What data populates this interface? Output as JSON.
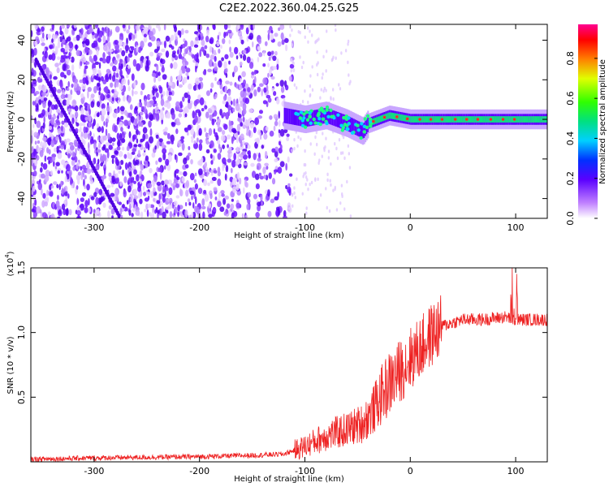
{
  "title": "C2E2.2022.360.04.25.G25",
  "chart_data": [
    {
      "type": "heatmap",
      "xlabel": "Height of straight line (km)",
      "ylabel": "Frequency (Hz)",
      "xlim": [
        -360,
        130
      ],
      "ylim": [
        -50,
        48
      ],
      "x_ticks": [
        -300,
        -200,
        -100,
        0,
        100
      ],
      "y_ticks": [
        -40,
        -20,
        0,
        20,
        40
      ],
      "colorbar": {
        "label": "Normalized spectral amplitude",
        "range": [
          0.0,
          0.97
        ],
        "ticks": [
          "0.0",
          "0.2",
          "0.4",
          "0.6",
          "0.8"
        ],
        "tick_values": [
          0.0,
          0.2,
          0.4,
          0.6,
          0.8
        ]
      },
      "ridge": [
        {
          "x": -120,
          "y": 2
        },
        {
          "x": -100,
          "y": 0
        },
        {
          "x": -80,
          "y": 2
        },
        {
          "x": -60,
          "y": -2
        },
        {
          "x": -45,
          "y": -6
        },
        {
          "x": -40,
          "y": -2
        },
        {
          "x": -20,
          "y": 2
        },
        {
          "x": 0,
          "y": 0
        },
        {
          "x": 50,
          "y": 0
        },
        {
          "x": 100,
          "y": 0
        },
        {
          "x": 130,
          "y": 0
        }
      ],
      "colors": {
        "low": "#7b00ff",
        "mid": "#00e5c0",
        "high": "#ff2a2a"
      }
    },
    {
      "type": "line",
      "xlabel": "Height of straight line (km)",
      "ylabel": "SNR (10 * v/v)",
      "y_scale_label": "(x10",
      "y_scale_exp": "4",
      "xlim": [
        -360,
        130
      ],
      "ylim": [
        0,
        1.5
      ],
      "x_ticks": [
        -300,
        -200,
        -100,
        0,
        100
      ],
      "y_ticks": [
        "0.5",
        "1.0",
        "1.5"
      ],
      "y_tick_values": [
        0.5,
        1.0,
        1.5
      ],
      "series": [
        {
          "color": "#ee2222",
          "x": [
            -360,
            -300,
            -200,
            -150,
            -120,
            -100,
            -80,
            -60,
            -45,
            -35,
            -25,
            -15,
            -5,
            0,
            10,
            20,
            30,
            50,
            70,
            90,
            100,
            110,
            130
          ],
          "y": [
            0.02,
            0.03,
            0.04,
            0.05,
            0.06,
            0.12,
            0.2,
            0.25,
            0.3,
            0.4,
            0.55,
            0.65,
            0.75,
            0.8,
            0.88,
            0.98,
            1.05,
            1.1,
            1.1,
            1.12,
            1.1,
            1.1,
            1.1
          ]
        }
      ]
    }
  ]
}
